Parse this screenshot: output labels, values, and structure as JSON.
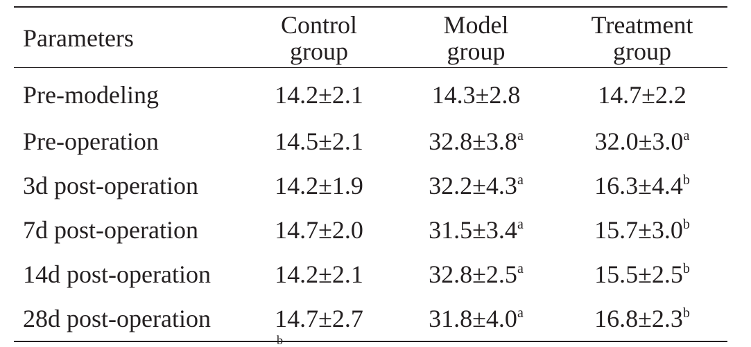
{
  "table": {
    "header": {
      "parameters": "Parameters",
      "control": [
        "Control",
        "group"
      ],
      "model": [
        "Model",
        "group"
      ],
      "treatment": [
        "Treatment",
        "group"
      ]
    },
    "rows": [
      {
        "label": "Pre-modeling",
        "control": "14.2±2.1",
        "control_sup": "",
        "model": "14.3±2.8",
        "model_sup": "",
        "treatment": "14.7±2.2",
        "treatment_sup": ""
      },
      {
        "label": "Pre-operation",
        "control": "14.5±2.1",
        "control_sup": "",
        "model": "32.8±3.8",
        "model_sup": "a",
        "treatment": "32.0±3.0",
        "treatment_sup": "a"
      },
      {
        "label": "3d post-operation",
        "control": "14.2±1.9",
        "control_sup": "",
        "model": "32.2±4.3",
        "model_sup": "a",
        "treatment": "16.3±4.4",
        "treatment_sup": "b"
      },
      {
        "label": "7d post-operation",
        "control": "14.7±2.0",
        "control_sup": "",
        "model": "31.5±3.4",
        "model_sup": "a",
        "treatment": "15.7±3.0",
        "treatment_sup": "b"
      },
      {
        "label": "14d post-operation",
        "control": "14.2±2.1",
        "control_sup": "",
        "model": "32.8±2.5",
        "model_sup": "a",
        "treatment": "15.5±2.5",
        "treatment_sup": "b"
      },
      {
        "label": "28d post-operation",
        "control": "14.7±2.7",
        "control_sup": "",
        "model": "31.8±4.0",
        "model_sup": "a",
        "treatment": "16.8±2.3",
        "treatment_sup": "b"
      }
    ]
  },
  "footnote_mark": "b"
}
